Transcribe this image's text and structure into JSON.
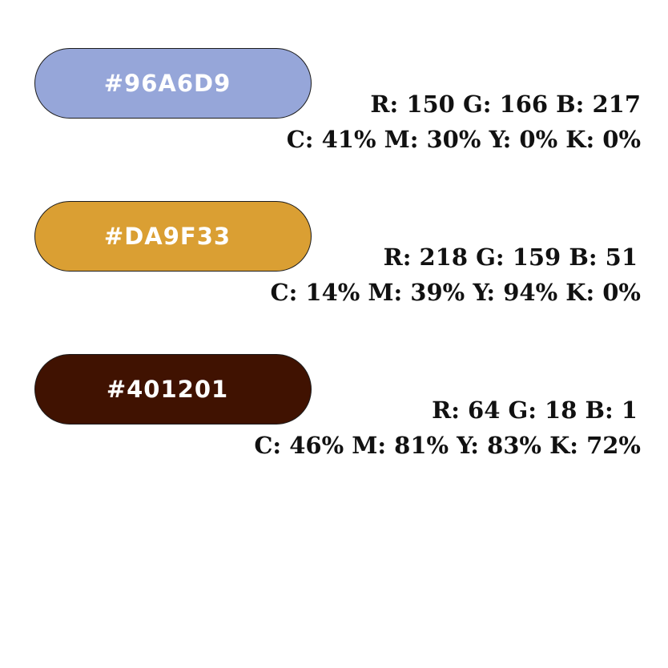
{
  "swatches": [
    {
      "hex": "#96A6D9",
      "fill": "#96A6D9",
      "text_color": "#ffffff",
      "rgb": "R: 150 G: 166 B: 217",
      "cmyk": "C: 41% M: 30% Y: 0% K: 0%"
    },
    {
      "hex": "#DA9F33",
      "fill": "#DA9F33",
      "text_color": "#ffffff",
      "rgb": "R: 218 G: 159 B: 51",
      "cmyk": "C: 14% M: 39% Y: 94% K: 0%"
    },
    {
      "hex": "#401201",
      "fill": "#401201",
      "text_color": "#ffffff",
      "rgb": "R: 64 G: 18 B: 1",
      "cmyk": "C: 46% M: 81% Y: 83% K: 72%"
    }
  ]
}
